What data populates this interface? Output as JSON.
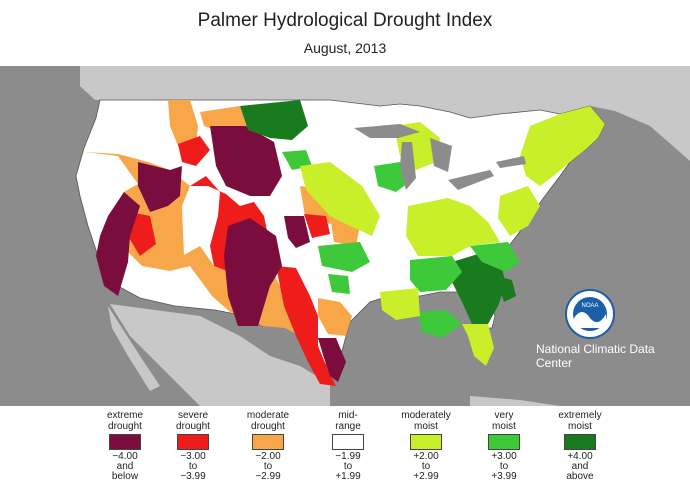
{
  "title": "Palmer Hydrological Drought Index",
  "subtitle": "August, 2013",
  "credit": "National Climatic Data Center",
  "logo_text": "NOAA",
  "colors": {
    "extreme_drought": "#7b0d3e",
    "severe_drought": "#ef1c1c",
    "moderate_drought": "#f7a74a",
    "mid_range": "#ffffff",
    "moderately_moist": "#c8ef2a",
    "very_moist": "#3dc93a",
    "extremely_moist": "#1a7a1e",
    "background": "#8c8c8c",
    "land_outside": "#c8c8c8"
  },
  "legend": [
    {
      "label1": "extreme",
      "label2": "drought",
      "range1": "−4.00",
      "range2": "and",
      "range3": "below",
      "color": "#7b0d3e"
    },
    {
      "label1": "severe",
      "label2": "drought",
      "range1": "−3.00",
      "range2": "to",
      "range3": "−3.99",
      "color": "#ef1c1c"
    },
    {
      "label1": "moderate",
      "label2": "drought",
      "range1": "−2.00",
      "range2": "to",
      "range3": "−2.99",
      "color": "#f7a74a"
    },
    {
      "label1": "mid-",
      "label2": "range",
      "range1": "−1.99",
      "range2": "to",
      "range3": "+1.99",
      "color": "#ffffff"
    },
    {
      "label1": "moderately",
      "label2": "moist",
      "range1": "+2.00",
      "range2": "to",
      "range3": "+2.99",
      "color": "#c8ef2a"
    },
    {
      "label1": "very",
      "label2": "moist",
      "range1": "+3.00",
      "range2": "to",
      "range3": "+3.99",
      "color": "#3dc93a"
    },
    {
      "label1": "extremely",
      "label2": "moist",
      "range1": "+4.00",
      "range2": "and",
      "range3": "above",
      "color": "#1a7a1e"
    }
  ]
}
